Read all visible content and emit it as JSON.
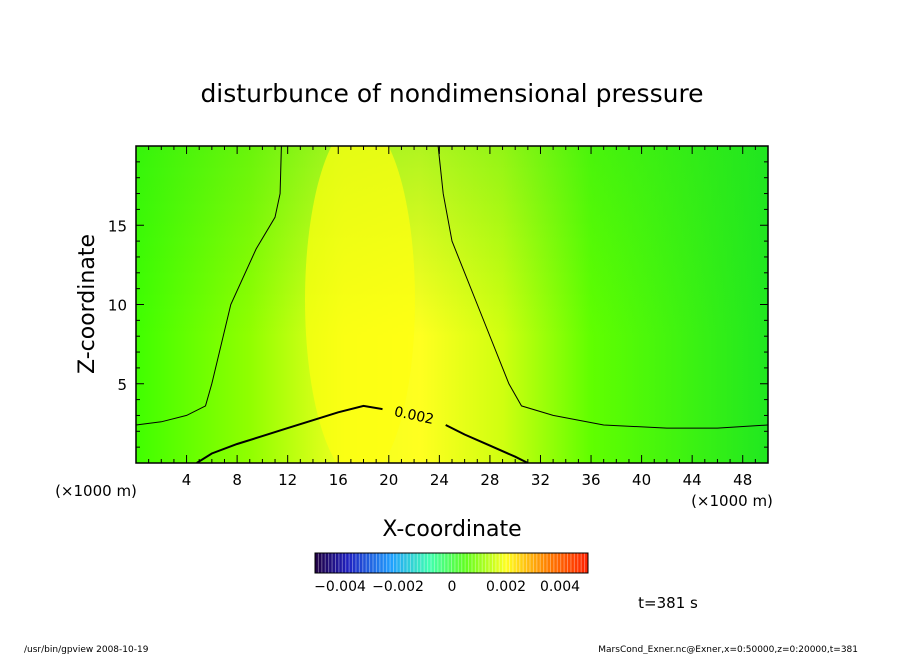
{
  "chart_data": {
    "type": "heatmap",
    "title": "disturbunce of nondimensional pressure",
    "xlabel": "X-coordinate",
    "ylabel": "Z-coordinate",
    "x_unit": "(×1000 m)",
    "x_unit_right": "(×1000 m)",
    "y_unit": "(×1000 m)",
    "xlim": [
      0,
      50
    ],
    "ylim": [
      0,
      20
    ],
    "xticks": [
      4,
      8,
      12,
      16,
      20,
      24,
      28,
      32,
      36,
      40,
      44,
      48
    ],
    "yticks": [
      5,
      10,
      15
    ],
    "contour_level_label": "0.002",
    "contours": [
      {
        "level": 0.002,
        "points": [
          [
            0,
            2.4
          ],
          [
            2,
            2.6
          ],
          [
            4,
            3.0
          ],
          [
            5.5,
            3.6
          ],
          [
            6,
            5
          ],
          [
            7.5,
            10
          ],
          [
            9.5,
            13.5
          ],
          [
            11,
            15.5
          ],
          [
            11.4,
            17
          ],
          [
            11.5,
            20
          ]
        ]
      },
      {
        "level": 0.002,
        "points": [
          [
            23.9,
            20
          ],
          [
            24.3,
            17
          ],
          [
            25,
            14
          ],
          [
            27,
            10
          ],
          [
            29.5,
            5
          ],
          [
            30.5,
            3.6
          ],
          [
            33,
            3
          ],
          [
            37,
            2.4
          ],
          [
            42,
            2.2
          ],
          [
            46,
            2.2
          ],
          [
            50,
            2.4
          ]
        ]
      },
      {
        "level": 0.002,
        "points": [
          [
            4.8,
            0
          ],
          [
            6,
            0.6
          ],
          [
            8,
            1.2
          ],
          [
            10,
            1.7
          ],
          [
            12,
            2.2
          ],
          [
            14,
            2.7
          ],
          [
            16,
            3.2
          ],
          [
            18,
            3.6
          ],
          [
            19.5,
            3.4
          ]
        ]
      },
      {
        "level": 0.002,
        "points": [
          [
            24.5,
            2.4
          ],
          [
            26,
            1.8
          ],
          [
            28,
            1.1
          ],
          [
            30,
            0.4
          ],
          [
            31,
            0
          ]
        ]
      }
    ],
    "colorbar": {
      "tick_labels": [
        "−0.004",
        "−0.002",
        "0",
        "0.002",
        "0.004"
      ],
      "tick_values": [
        -0.004,
        -0.002,
        0,
        0.002,
        0.004
      ],
      "range": [
        -0.005,
        0.005
      ]
    },
    "time_label": "t=381 s"
  },
  "footer": {
    "left": "/usr/bin/gpview   2008-10-19",
    "right": "MarsCond_Exner.nc@Exner,x=0:50000,z=0:20000,t=381"
  },
  "colors": {
    "field_low": "#00e020",
    "field_mid": "#ffff20",
    "field_high": "#ff8000"
  }
}
